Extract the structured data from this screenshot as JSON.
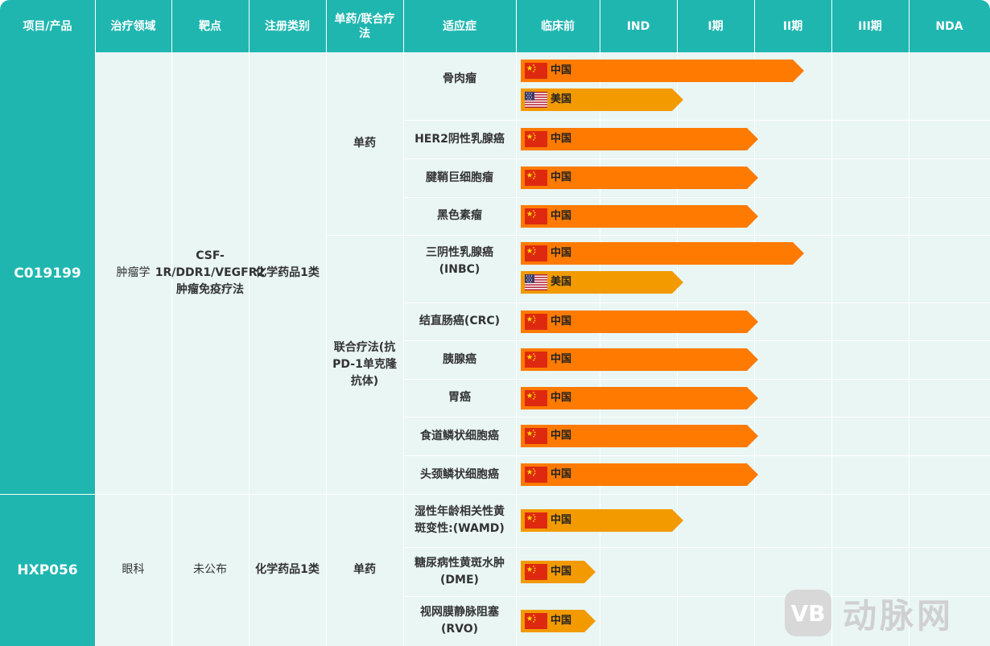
{
  "headers": [
    "项目/产品",
    "治疗领域",
    "靶点",
    "注册类别",
    "单药/联合疗法",
    "适应症",
    "临床前",
    "IND",
    "I期",
    "II期",
    "III期",
    "NDA"
  ],
  "colors": {
    "header_teal": "#1fb6b0",
    "body_bg": "#e9f6f4",
    "bar_orange": "#ff7a00",
    "bar_amber": "#f29a00"
  },
  "projects": [
    {
      "name": "C019199",
      "area": "肿瘤学",
      "target": "CSF-1R/DDR1/VEGFR2肿瘤免疫疗法",
      "reg_class": "化学药品1类",
      "therapies": [
        {
          "label": "单药",
          "indications": [
            {
              "name": "骨肉瘤",
              "bars": [
                {
                  "country": "中国",
                  "flag": "china-flag-icon",
                  "stage": "II期",
                  "color": "#ff7a00"
                },
                {
                  "country": "美国",
                  "flag": "us-flag-icon",
                  "stage": "IND",
                  "color": "#f29a00"
                }
              ]
            },
            {
              "name": "HER2阴性乳腺癌",
              "bars": [
                {
                  "country": "中国",
                  "flag": "china-flag-icon",
                  "stage": "I期",
                  "color": "#ff7a00"
                }
              ]
            },
            {
              "name": "腱鞘巨细胞瘤",
              "bars": [
                {
                  "country": "中国",
                  "flag": "china-flag-icon",
                  "stage": "I期",
                  "color": "#ff7a00"
                }
              ]
            },
            {
              "name": "黑色素瘤",
              "bars": [
                {
                  "country": "中国",
                  "flag": "china-flag-icon",
                  "stage": "I期",
                  "color": "#ff7a00"
                }
              ]
            }
          ]
        },
        {
          "label": "联合疗法(抗PD-1单克隆抗体)",
          "indications": [
            {
              "name": "三阴性乳腺癌(INBC)",
              "bars": [
                {
                  "country": "中国",
                  "flag": "china-flag-icon",
                  "stage": "II期",
                  "color": "#ff7a00"
                },
                {
                  "country": "美国",
                  "flag": "us-flag-icon",
                  "stage": "IND",
                  "color": "#f29a00"
                }
              ]
            },
            {
              "name": "结直肠癌(CRC)",
              "bars": [
                {
                  "country": "中国",
                  "flag": "china-flag-icon",
                  "stage": "I期",
                  "color": "#ff7a00"
                }
              ]
            },
            {
              "name": "胰腺癌",
              "bars": [
                {
                  "country": "中国",
                  "flag": "china-flag-icon",
                  "stage": "I期",
                  "color": "#ff7a00"
                }
              ]
            },
            {
              "name": "胃癌",
              "bars": [
                {
                  "country": "中国",
                  "flag": "china-flag-icon",
                  "stage": "I期",
                  "color": "#ff7a00"
                }
              ]
            },
            {
              "name": "食道鳞状细胞癌",
              "bars": [
                {
                  "country": "中国",
                  "flag": "china-flag-icon",
                  "stage": "I期",
                  "color": "#ff7a00"
                }
              ]
            },
            {
              "name": "头颈鳞状细胞癌",
              "bars": [
                {
                  "country": "中国",
                  "flag": "china-flag-icon",
                  "stage": "I期",
                  "color": "#ff7a00"
                }
              ]
            }
          ]
        }
      ]
    },
    {
      "name": "HXP056",
      "area": "眼科",
      "target": "未公布",
      "reg_class": "化学药品1类",
      "therapies": [
        {
          "label": "单药",
          "indications": [
            {
              "name": "湿性年龄相关性黄斑变性:(WAMD)",
              "bars": [
                {
                  "country": "中国",
                  "flag": "china-flag-icon",
                  "stage": "IND",
                  "color": "#f29a00"
                }
              ]
            },
            {
              "name": "糖尿病性黄斑水肿(DME)",
              "bars": [
                {
                  "country": "中国",
                  "flag": "china-flag-icon",
                  "stage": "临床前",
                  "color": "#f29a00"
                }
              ]
            },
            {
              "name": "视网膜静脉阻塞(RVO)",
              "bars": [
                {
                  "country": "中国",
                  "flag": "china-flag-icon",
                  "stage": "临床前",
                  "color": "#f29a00"
                }
              ]
            }
          ]
        }
      ]
    }
  ],
  "watermark": {
    "logo": "VB",
    "text": "动脉网"
  }
}
